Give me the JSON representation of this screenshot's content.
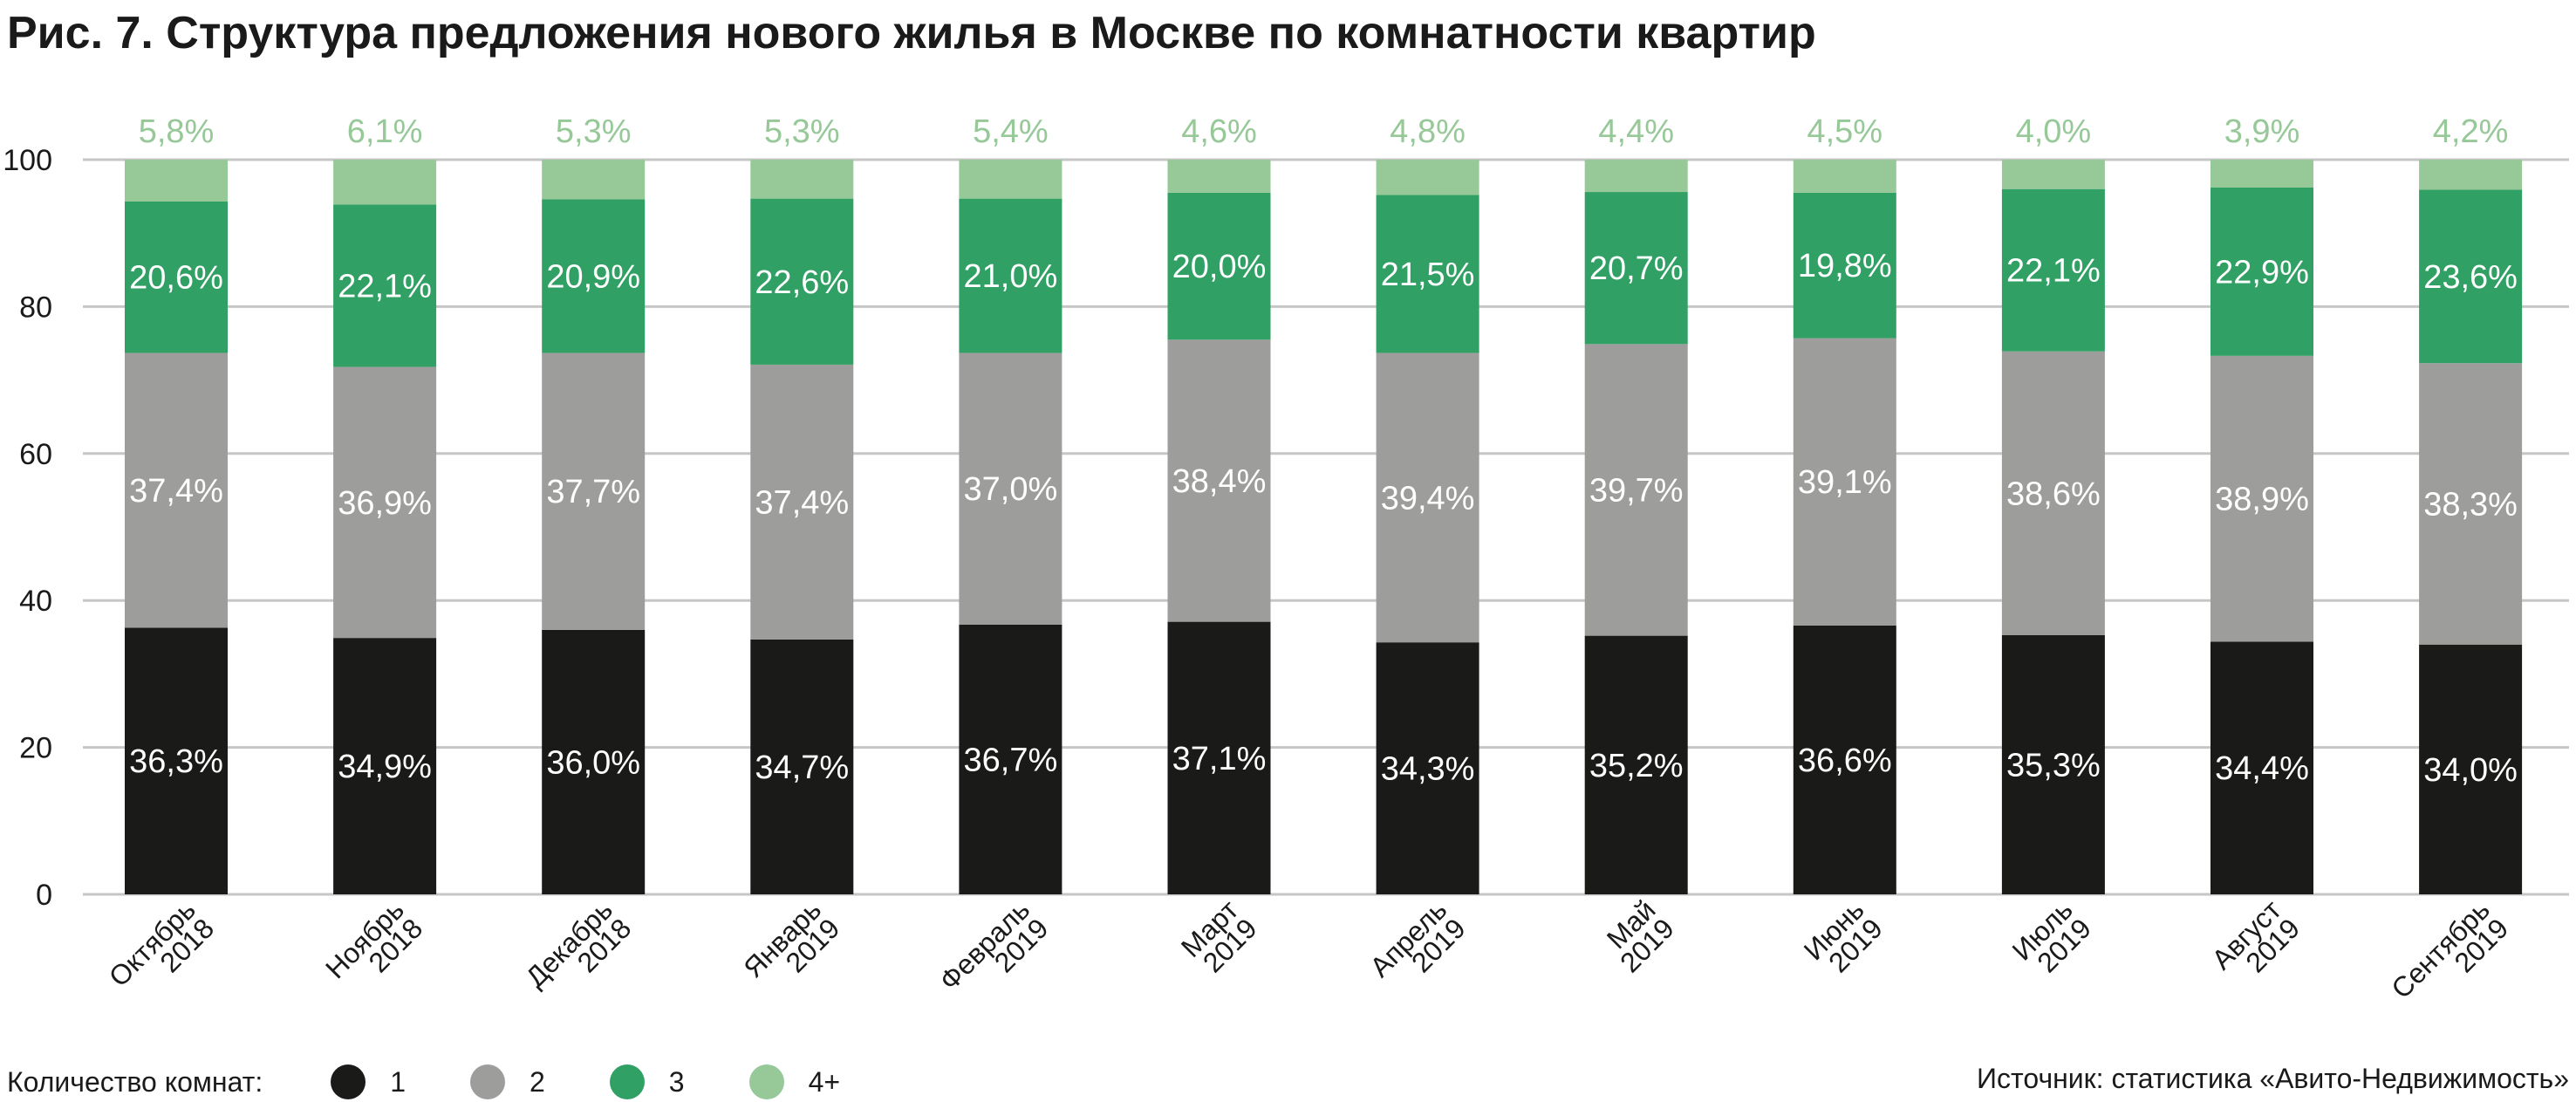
{
  "chart_data": {
    "type": "bar",
    "stacked": true,
    "title": "Рис. 7. Структура предложения нового жилья в Москве по комнатности квартир",
    "categories": [
      [
        "Октябрь",
        "2018"
      ],
      [
        "Ноябрь",
        "2018"
      ],
      [
        "Декабрь",
        "2018"
      ],
      [
        "Январь",
        "2019"
      ],
      [
        "Февраль",
        "2019"
      ],
      [
        "Март",
        "2019"
      ],
      [
        "Апрель",
        "2019"
      ],
      [
        "Май",
        "2019"
      ],
      [
        "Июнь",
        "2019"
      ],
      [
        "Июль",
        "2019"
      ],
      [
        "Август",
        "2019"
      ],
      [
        "Сентябрь",
        "2019"
      ]
    ],
    "series": [
      {
        "name": "1",
        "color": "#1a1a18",
        "values": [
          36.3,
          34.9,
          36.0,
          34.7,
          36.7,
          37.1,
          34.3,
          35.2,
          36.6,
          35.3,
          34.4,
          34.0
        ],
        "labels": [
          "36,3%",
          "34,9%",
          "36,0%",
          "34,7%",
          "36,7%",
          "37,1%",
          "34,3%",
          "35,2%",
          "36,6%",
          "35,3%",
          "34,4%",
          "34,0%"
        ]
      },
      {
        "name": "2",
        "color": "#9d9d9c",
        "values": [
          37.4,
          36.9,
          37.7,
          37.4,
          37.0,
          38.4,
          39.4,
          39.7,
          39.1,
          38.6,
          38.9,
          38.3
        ],
        "labels": [
          "37,4%",
          "36,9%",
          "37,7%",
          "37,4%",
          "37,0%",
          "38,4%",
          "39,4%",
          "39,7%",
          "39,1%",
          "38,6%",
          "38,9%",
          "38,3%"
        ]
      },
      {
        "name": "3",
        "color": "#30a064",
        "values": [
          20.6,
          22.1,
          20.9,
          22.6,
          21.0,
          20.0,
          21.5,
          20.7,
          19.8,
          22.1,
          22.9,
          23.6
        ],
        "labels": [
          "20,6%",
          "22,1%",
          "20,9%",
          "22,6%",
          "21,0%",
          "20,0%",
          "21,5%",
          "20,7%",
          "19,8%",
          "22,1%",
          "22,9%",
          "23,6%"
        ]
      },
      {
        "name": "4+",
        "color": "#96c898",
        "values": [
          5.8,
          6.1,
          5.3,
          5.3,
          5.4,
          4.6,
          4.8,
          4.4,
          4.5,
          4.0,
          3.9,
          4.2
        ],
        "labels": [
          "5,8%",
          "6,1%",
          "5,3%",
          "5,3%",
          "5,4%",
          "4,6%",
          "4,8%",
          "4,4%",
          "4,5%",
          "4,0%",
          "3,9%",
          "4,2%"
        ]
      }
    ],
    "ylim": [
      0,
      100
    ],
    "yticks": [
      0,
      20,
      40,
      60,
      80,
      100
    ],
    "grid": true,
    "legend": {
      "title": "Количество комнат:",
      "placement": "bottom-left"
    },
    "source": "Источник: статистика «Авито-Недвижимость»"
  }
}
